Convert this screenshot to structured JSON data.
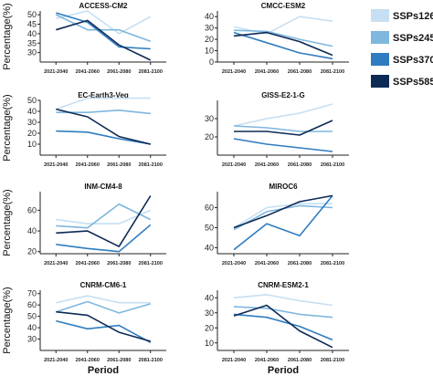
{
  "chart_data": {
    "type": "line",
    "categories": [
      "2021-2040",
      "2041-2060",
      "2061-2080",
      "2081-2100"
    ],
    "xlabel": "Period",
    "ylabel": "Percentage(%)",
    "legend": {
      "placement": "top-right",
      "entries": [
        {
          "name": "SSPs126",
          "color": "#c6dff2"
        },
        {
          "name": "SSPs245",
          "color": "#7fb7de"
        },
        {
          "name": "SSPs370",
          "color": "#2f7cc0"
        },
        {
          "name": "SSPs585",
          "color": "#0d2a55"
        }
      ]
    },
    "panels": [
      {
        "title": "ACCESS-CM2",
        "ylim": [
          25,
          52
        ],
        "yticks": [
          30,
          35,
          40,
          45,
          50
        ],
        "series": [
          {
            "name": "SSPs126",
            "values": [
              48,
              52,
              40,
              49
            ]
          },
          {
            "name": "SSPs245",
            "values": [
              50,
              42,
              42,
              36
            ]
          },
          {
            "name": "SSPs370",
            "values": [
              51,
              46,
              33,
              32
            ]
          },
          {
            "name": "SSPs585",
            "values": [
              42,
              47,
              34,
              26
            ]
          }
        ]
      },
      {
        "title": "CMCC-ESM2",
        "ylim": [
          0,
          45
        ],
        "yticks": [
          0,
          10,
          20,
          30,
          40
        ],
        "series": [
          {
            "name": "SSPs126",
            "values": [
              31,
              25,
              40,
              36
            ]
          },
          {
            "name": "SSPs245",
            "values": [
              28,
              27,
              20,
              14
            ]
          },
          {
            "name": "SSPs370",
            "values": [
              26,
              17,
              8,
              3
            ]
          },
          {
            "name": "SSPs585",
            "values": [
              23,
              26,
              18,
              6
            ]
          }
        ]
      },
      {
        "title": "EC-Earth3-Veg",
        "ylim": [
          0,
          50
        ],
        "yticks": [
          10,
          20,
          30,
          40,
          50
        ],
        "series": [
          {
            "name": "SSPs126",
            "values": [
              42,
              52,
              52,
              52
            ]
          },
          {
            "name": "SSPs245",
            "values": [
              39,
              39,
              41,
              38
            ]
          },
          {
            "name": "SSPs370",
            "values": [
              22,
              21,
              15,
              10
            ]
          },
          {
            "name": "SSPs585",
            "values": [
              42,
              35,
              17,
              10
            ]
          }
        ]
      },
      {
        "title": "GISS-E2-1-G",
        "ylim": [
          10,
          40
        ],
        "yticks": [
          20,
          30
        ],
        "series": [
          {
            "name": "SSPs126",
            "values": [
              26,
              30,
              33,
              38
            ]
          },
          {
            "name": "SSPs245",
            "values": [
              26,
              25,
              23,
              23
            ]
          },
          {
            "name": "SSPs370",
            "values": [
              19,
              16,
              14,
              12
            ]
          },
          {
            "name": "SSPs585",
            "values": [
              23,
              23,
              21,
              29
            ]
          }
        ]
      },
      {
        "title": "INM-CM4-8",
        "ylim": [
          18,
          78
        ],
        "yticks": [
          20,
          40,
          60
        ],
        "series": [
          {
            "name": "SSPs126",
            "values": [
              51,
              47,
              47,
              60
            ]
          },
          {
            "name": "SSPs245",
            "values": [
              45,
              43,
              66,
              51
            ]
          },
          {
            "name": "SSPs370",
            "values": [
              27,
              23,
              20,
              46
            ]
          },
          {
            "name": "SSPs585",
            "values": [
              38,
              40,
              25,
              74
            ]
          }
        ]
      },
      {
        "title": "MIROC6",
        "ylim": [
          37,
          68
        ],
        "yticks": [
          40,
          50,
          60
        ],
        "series": [
          {
            "name": "SSPs126",
            "values": [
              50,
              60,
              62,
              62
            ]
          },
          {
            "name": "SSPs245",
            "values": [
              49,
              58,
              61,
              60
            ]
          },
          {
            "name": "SSPs370",
            "values": [
              39,
              52,
              46,
              66
            ]
          },
          {
            "name": "SSPs585",
            "values": [
              50,
              56,
              63,
              66
            ]
          }
        ]
      },
      {
        "title": "CNRM-CM6-1",
        "ylim": [
          20,
          73
        ],
        "yticks": [
          30,
          40,
          50,
          60,
          70
        ],
        "series": [
          {
            "name": "SSPs126",
            "values": [
              62,
              68,
              62,
              62
            ]
          },
          {
            "name": "SSPs245",
            "values": [
              54,
              63,
              53,
              61
            ]
          },
          {
            "name": "SSPs370",
            "values": [
              46,
              39,
              42,
              27
            ]
          },
          {
            "name": "SSPs585",
            "values": [
              54,
              51,
              36,
              28
            ]
          }
        ]
      },
      {
        "title": "CNRM-ESM2-1",
        "ylim": [
          5,
          45
        ],
        "yticks": [
          10,
          20,
          30,
          40
        ],
        "series": [
          {
            "name": "SSPs126",
            "values": [
              40,
              42,
              38,
              35
            ]
          },
          {
            "name": "SSPs245",
            "values": [
              34,
              33,
              29,
              27
            ]
          },
          {
            "name": "SSPs370",
            "values": [
              29,
              27,
              21,
              12
            ]
          },
          {
            "name": "SSPs585",
            "values": [
              28,
              35,
              18,
              7
            ]
          }
        ]
      }
    ]
  }
}
